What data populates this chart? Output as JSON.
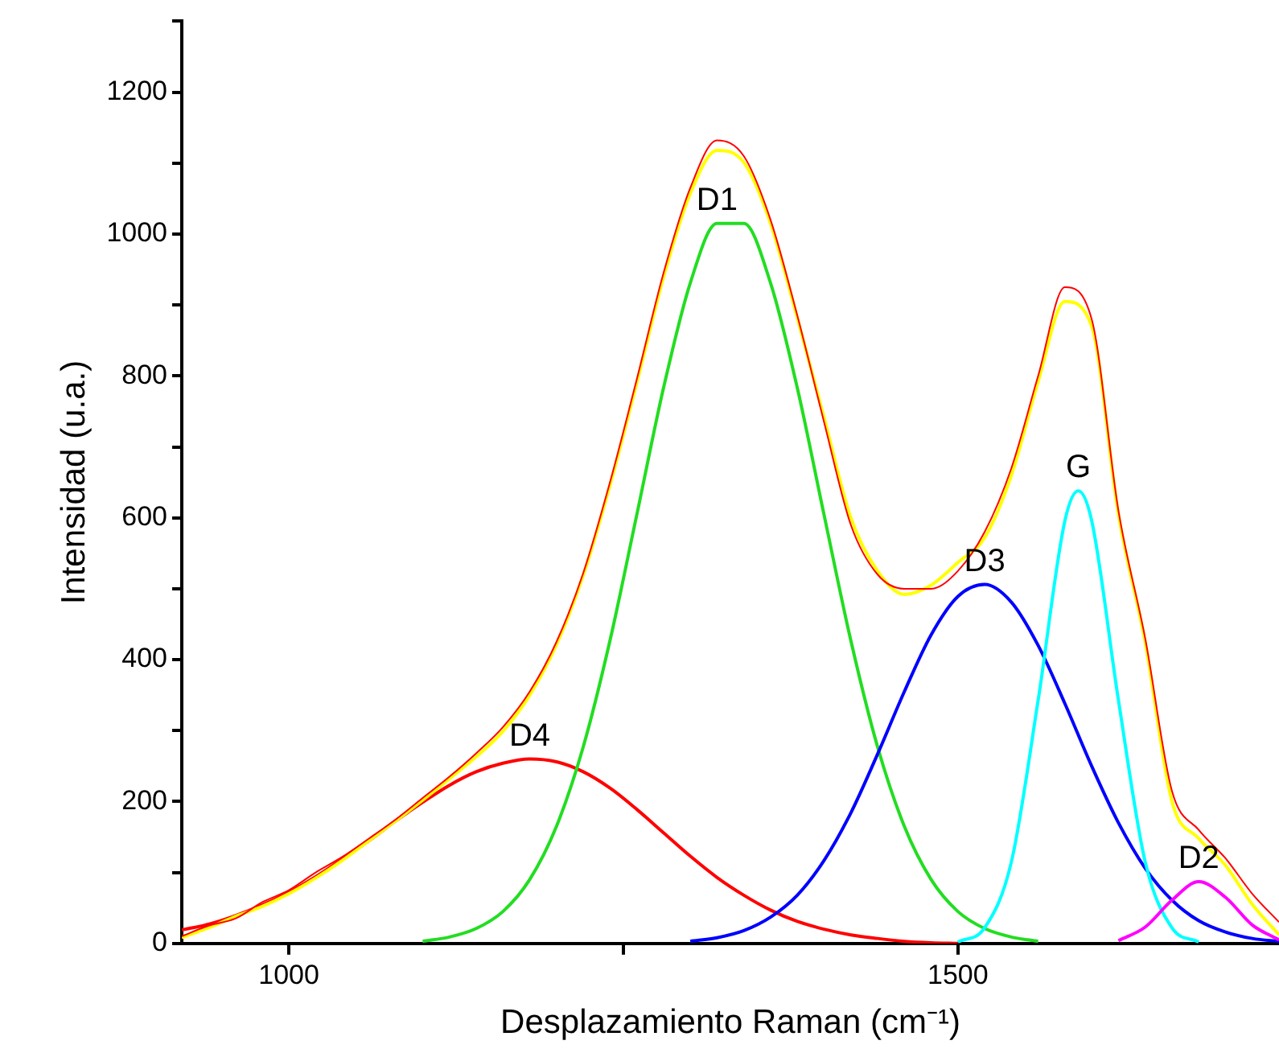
{
  "chart_data": {
    "type": "line",
    "xlabel": "Desplazamiento Raman (cm⁻¹)",
    "ylabel": "Intensidad (u.a.)",
    "xlim": [
      920,
      1740
    ],
    "xticks": [
      1000,
      {
        "value": 1250,
        "label": null
      },
      1500
    ],
    "ylim": [
      0,
      1300
    ],
    "yticks": [
      0,
      {
        "value": 100,
        "label": null
      },
      200,
      {
        "value": 300,
        "label": null
      },
      400,
      {
        "value": 500,
        "label": null
      },
      600,
      {
        "value": 700,
        "label": null
      },
      800,
      {
        "value": 900,
        "label": null
      },
      1000,
      {
        "value": 1100,
        "label": null
      },
      1200,
      {
        "value": 1300,
        "label": null
      }
    ],
    "grid": false,
    "legend": false,
    "marker": "none",
    "line_style": "solid",
    "series": [
      {
        "name": "D4",
        "color": "#ff0000",
        "x": [
          920,
          940,
          960,
          980,
          1000,
          1020,
          1040,
          1060,
          1080,
          1100,
          1120,
          1140,
          1160,
          1180,
          1200,
          1220,
          1240,
          1260,
          1280,
          1300,
          1320,
          1340,
          1360,
          1380,
          1400,
          1420,
          1440,
          1460,
          1480,
          1500
        ],
        "values": [
          19,
          27,
          39,
          54,
          72,
          94,
          119,
          145,
          173,
          199,
          223,
          242,
          254,
          260,
          256,
          242,
          219,
          189,
          156,
          123,
          93,
          68,
          47,
          31,
          20,
          12,
          7,
          3,
          1,
          0
        ]
      },
      {
        "name": "D1",
        "color": "#22dd22",
        "x": [
          1100,
          1120,
          1140,
          1160,
          1180,
          1200,
          1220,
          1240,
          1260,
          1280,
          1300,
          1320,
          1340,
          1360,
          1380,
          1400,
          1420,
          1440,
          1460,
          1480,
          1500,
          1520,
          1540,
          1560
        ],
        "values": [
          3,
          9,
          21,
          45,
          90,
          165,
          277,
          427,
          604,
          783,
          931,
          1015,
          1015,
          931,
          783,
          604,
          427,
          277,
          165,
          90,
          45,
          21,
          9,
          3
        ]
      },
      {
        "name": "D3",
        "color": "#0000ff",
        "x": [
          1300,
          1320,
          1340,
          1360,
          1380,
          1400,
          1420,
          1440,
          1460,
          1480,
          1500,
          1520,
          1540,
          1560,
          1580,
          1600,
          1620,
          1640,
          1660,
          1680,
          1700,
          1720,
          1740
        ],
        "values": [
          3,
          8,
          18,
          37,
          68,
          117,
          184,
          267,
          355,
          435,
          489,
          506,
          481,
          420,
          338,
          250,
          170,
          106,
          61,
          32,
          16,
          7,
          3
        ]
      },
      {
        "name": "G",
        "color": "#00ffff",
        "x": [
          1500,
          1520,
          1540,
          1560,
          1580,
          1590,
          1600,
          1620,
          1640,
          1660,
          1680
        ],
        "values": [
          2,
          22,
          115,
          343,
          596,
          638,
          596,
          343,
          115,
          22,
          2
        ]
      },
      {
        "name": "D2",
        "color": "#ff00ff",
        "x": [
          1620,
          1640,
          1660,
          1680,
          1700,
          1720,
          1740
        ],
        "values": [
          4,
          23,
          61,
          87,
          65,
          26,
          5
        ]
      },
      {
        "color": "#ffff00",
        "x": [
          920,
          940,
          960,
          980,
          1000,
          1020,
          1040,
          1060,
          1080,
          1100,
          1120,
          1140,
          1160,
          1180,
          1200,
          1220,
          1240,
          1260,
          1280,
          1300,
          1320,
          1340,
          1360,
          1380,
          1400,
          1420,
          1440,
          1460,
          1480,
          1500,
          1520,
          1540,
          1560,
          1580,
          1600,
          1620,
          1640,
          1660,
          1680,
          1700,
          1720,
          1740
        ],
        "values": [
          8,
          22,
          38,
          52,
          70,
          92,
          117,
          145,
          173,
          202,
          232,
          263,
          299,
          350,
          421,
          519,
          646,
          790,
          939,
          1057,
          1118,
          1101,
          1015,
          882,
          741,
          600,
          525,
          492,
          505,
          537,
          572,
          660,
          792,
          905,
          870,
          605,
          425,
          200,
          148,
          110,
          55,
          12
        ]
      },
      {
        "color": "#ff0000",
        "x": [
          920,
          940,
          960,
          980,
          1000,
          1020,
          1040,
          1060,
          1080,
          1100,
          1120,
          1140,
          1160,
          1180,
          1200,
          1220,
          1240,
          1260,
          1280,
          1300,
          1320,
          1340,
          1360,
          1380,
          1400,
          1420,
          1440,
          1460,
          1480,
          1500,
          1520,
          1540,
          1560,
          1580,
          1600,
          1620,
          1640,
          1660,
          1680,
          1700,
          1720,
          1740
        ],
        "values": [
          10,
          25,
          35,
          58,
          75,
          100,
          122,
          148,
          175,
          205,
          235,
          268,
          305,
          355,
          425,
          522,
          650,
          795,
          945,
          1065,
          1132,
          1110,
          1020,
          885,
          735,
          590,
          520,
          500,
          500,
          525,
          580,
          670,
          800,
          925,
          880,
          610,
          430,
          215,
          160,
          120,
          70,
          30
        ]
      }
    ]
  }
}
